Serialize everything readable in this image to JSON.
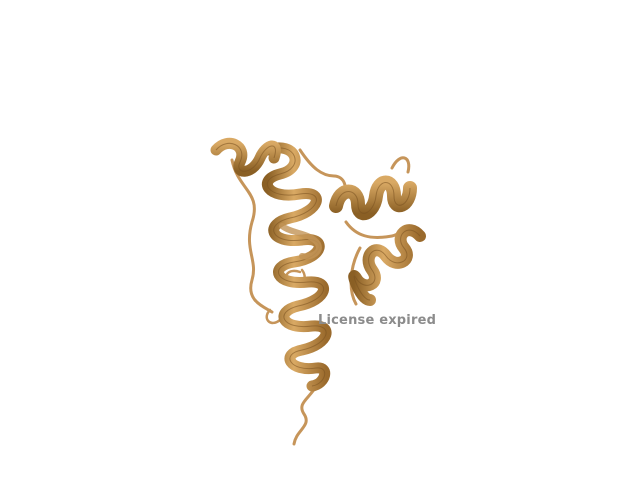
{
  "viewer": {
    "watermark_text": "License expired"
  },
  "structure": {
    "representation": "cartoon",
    "secondary_elements": [
      "helix",
      "helix",
      "helix",
      "loop"
    ],
    "colors": {
      "ribbon_light": "#d9a964",
      "ribbon_mid": "#b98640",
      "ribbon_dark": "#8a5f24",
      "loop": "#c6955a",
      "background": "#ffffff"
    }
  }
}
